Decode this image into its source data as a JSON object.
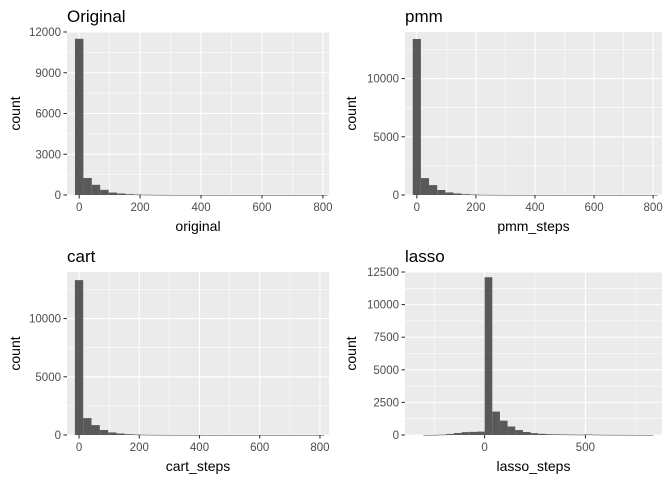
{
  "chart_data": [
    {
      "type": "bar",
      "title": "Original",
      "xlabel": "original",
      "ylabel": "count",
      "xlim": [
        -40,
        820
      ],
      "ylim": [
        0,
        12000
      ],
      "xticks": [
        0,
        200,
        400,
        600,
        800
      ],
      "yticks": [
        0,
        3000,
        6000,
        9000,
        12000
      ],
      "bin_width": 27.6,
      "bin_start": -13.8,
      "counts": [
        11500,
        1250,
        750,
        380,
        180,
        110,
        60,
        35,
        20,
        12,
        8,
        6,
        5,
        4,
        3,
        3,
        2,
        2,
        2,
        1,
        1,
        1,
        1,
        1,
        1,
        1,
        1,
        1,
        1,
        1
      ],
      "bar_color": "#595959",
      "grid": true
    },
    {
      "type": "bar",
      "title": "pmm",
      "xlabel": "pmm_steps",
      "ylabel": "count",
      "xlim": [
        -40,
        830
      ],
      "ylim": [
        0,
        14000
      ],
      "xticks": [
        0,
        200,
        400,
        600,
        800
      ],
      "yticks": [
        0,
        5000,
        10000
      ],
      "bin_width": 27.6,
      "bin_start": -13.8,
      "counts": [
        13400,
        1450,
        850,
        430,
        220,
        130,
        70,
        40,
        22,
        14,
        9,
        7,
        5,
        4,
        3,
        3,
        2,
        2,
        2,
        1,
        1,
        1,
        1,
        1,
        1,
        1,
        1,
        1,
        1,
        1
      ],
      "bar_color": "#595959",
      "grid": true
    },
    {
      "type": "bar",
      "title": "cart",
      "xlabel": "cart_steps",
      "ylabel": "count",
      "xlim": [
        -40,
        830
      ],
      "ylim": [
        0,
        14000
      ],
      "xticks": [
        0,
        200,
        400,
        600,
        800
      ],
      "yticks": [
        0,
        5000,
        10000
      ],
      "bin_width": 27.6,
      "bin_start": -13.8,
      "counts": [
        13300,
        1450,
        850,
        430,
        220,
        130,
        70,
        40,
        22,
        14,
        9,
        7,
        5,
        4,
        3,
        3,
        2,
        2,
        2,
        1,
        1,
        1,
        1,
        1,
        1,
        1,
        1,
        1,
        1,
        1
      ],
      "bar_color": "#595959",
      "grid": true
    },
    {
      "type": "bar",
      "title": "lasso",
      "xlabel": "lasso_steps",
      "ylabel": "count",
      "xlim": [
        -395,
        880
      ],
      "ylim": [
        0,
        12500
      ],
      "xticks": [
        0,
        500
      ],
      "yticks": [
        0,
        2500,
        5000,
        7500,
        10000,
        12500
      ],
      "bin_width": 38.0,
      "bin_start": -304,
      "counts": [
        5,
        10,
        30,
        80,
        150,
        220,
        240,
        260,
        12100,
        1800,
        1100,
        650,
        380,
        230,
        140,
        90,
        60,
        50,
        40,
        30,
        25,
        40,
        25,
        15,
        12,
        10,
        8,
        6,
        5,
        4
      ],
      "bar_color": "#595959",
      "grid": true
    }
  ]
}
